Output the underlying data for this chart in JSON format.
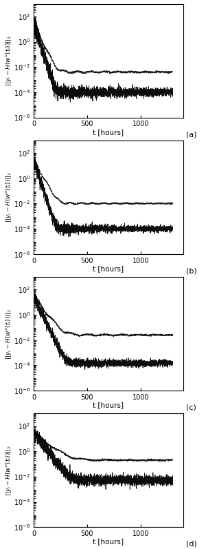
{
  "n_panels": 4,
  "panel_labels": [
    "(a)",
    "(b)",
    "(c)",
    "(d)"
  ],
  "t_max": 1300,
  "xlim": [
    0,
    1400
  ],
  "xticks": [
    0,
    500,
    1000
  ],
  "ylim": [
    1e-06,
    1000.0
  ],
  "yticks": [
    1e-06,
    0.0001,
    0.01,
    1.0,
    100.0
  ],
  "xlabel": "t [hours]",
  "panels": [
    {
      "solid_floor": 0.0001,
      "solid_init": 30,
      "solid_decay": 0.06,
      "solid_noise_amp": 0.6,
      "solid_noise_decay": 0.002,
      "dotted_floor": 0.004,
      "dotted_init": 30,
      "dotted_decay": 0.04,
      "dotted_noise_amp": 0.08,
      "dotted_osc_amp": 0.3,
      "dotted_osc_freq": 0.05
    },
    {
      "solid_floor": 0.0001,
      "solid_init": 30,
      "solid_decay": 0.06,
      "solid_noise_amp": 0.45,
      "solid_noise_decay": 0.002,
      "dotted_floor": 0.01,
      "dotted_init": 30,
      "dotted_decay": 0.035,
      "dotted_noise_amp": 0.06,
      "dotted_osc_amp": 0.25,
      "dotted_osc_freq": 0.06
    },
    {
      "solid_floor": 0.00015,
      "solid_init": 30,
      "solid_decay": 0.04,
      "solid_noise_amp": 0.35,
      "solid_noise_decay": 0.001,
      "dotted_floor": 0.025,
      "dotted_init": 30,
      "dotted_decay": 0.025,
      "dotted_noise_amp": 0.08,
      "dotted_osc_amp": 0.3,
      "dotted_osc_freq": 0.04
    },
    {
      "solid_floor": 0.005,
      "solid_init": 30,
      "solid_decay": 0.025,
      "solid_noise_amp": 0.4,
      "solid_noise_decay": 0.0005,
      "dotted_floor": 0.2,
      "dotted_init": 30,
      "dotted_decay": 0.015,
      "dotted_noise_amp": 0.08,
      "dotted_osc_amp": 0.25,
      "dotted_osc_freq": 0.03
    }
  ],
  "seed": 7,
  "n_points": 2600,
  "background_color": "#ffffff",
  "line_color": "#000000"
}
